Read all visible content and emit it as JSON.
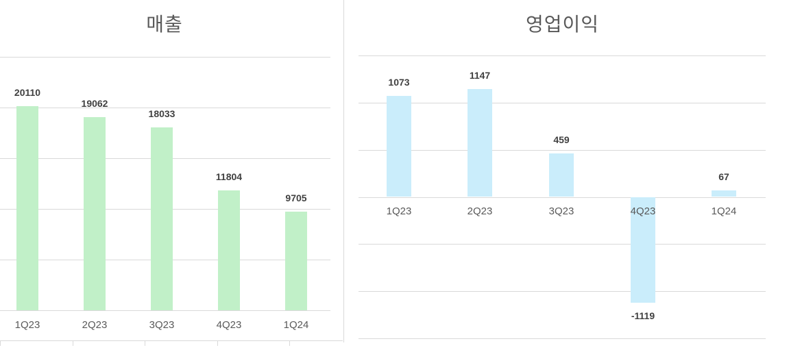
{
  "chart_data": [
    {
      "type": "bar",
      "title": "매출",
      "categories": [
        "1Q23",
        "2Q23",
        "3Q23",
        "4Q23",
        "1Q24"
      ],
      "values": [
        20110,
        19062,
        18033,
        11804,
        9705
      ],
      "xlabel": "",
      "ylabel": "",
      "ylim": [
        0,
        25000
      ],
      "grid": true,
      "legend": null,
      "bar_color": "#c1f0c8",
      "data_labels": true
    },
    {
      "type": "bar",
      "title": "영업이익",
      "categories": [
        "1Q23",
        "2Q23",
        "3Q23",
        "4Q23",
        "1Q24"
      ],
      "values": [
        1073,
        1147,
        459,
        -1119,
        67
      ],
      "xlabel": "",
      "ylabel": "",
      "ylim": [
        -1500,
        1500
      ],
      "grid": true,
      "legend": null,
      "bar_color": "#caedfb",
      "data_labels": true
    }
  ],
  "left": {
    "title": "매출",
    "labels": [
      "20110",
      "19062",
      "18033",
      "11804",
      "9705"
    ],
    "categories": [
      "1Q23",
      "2Q23",
      "3Q23",
      "4Q23",
      "1Q24"
    ]
  },
  "right": {
    "title": "영업이익",
    "labels": [
      "1073",
      "1147",
      "459",
      "-1119",
      "67"
    ],
    "categories": [
      "1Q23",
      "2Q23",
      "3Q23",
      "4Q23",
      "1Q24"
    ]
  }
}
